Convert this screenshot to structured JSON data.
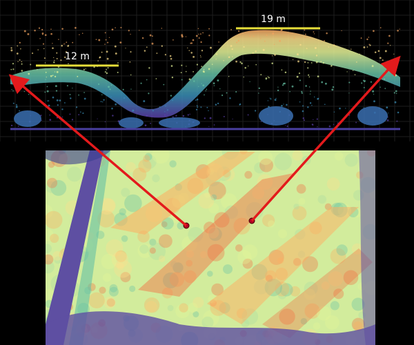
{
  "profile": {
    "label_left": "12 m",
    "label_right": "19 m",
    "bar_color": "#e8e03a",
    "ground_color": "#4a3fa0",
    "gradient": [
      "#5a3fa8",
      "#3a8fb8",
      "#66c2a5",
      "#e6f598",
      "#fee08b",
      "#f4a460"
    ]
  },
  "map": {
    "colors": [
      "#5e4fa2",
      "#66c2a5",
      "#abdda4",
      "#e6f598",
      "#fee08b",
      "#fdae61",
      "#f46d43"
    ]
  },
  "arrow_color": "#e31a1c"
}
